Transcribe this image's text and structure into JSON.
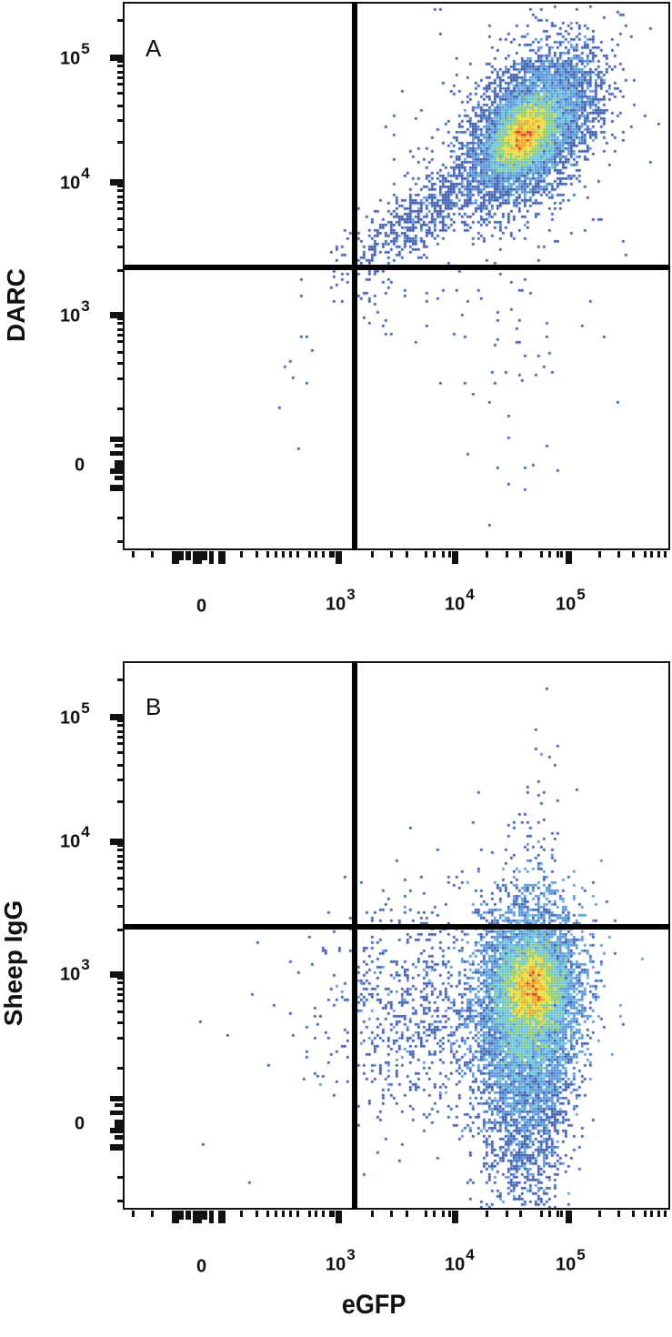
{
  "figure": {
    "x_axis_title": "eGFP",
    "colors": {
      "frame": "#111111",
      "gate": "#000000",
      "density_scale": [
        "#3352a8",
        "#4f8fd6",
        "#5fc0d8",
        "#8cc95a",
        "#e8dc2a",
        "#f0a010",
        "#dd2a1e"
      ]
    }
  },
  "panels": [
    {
      "id": "A",
      "letter": "A",
      "y_axis_title": "DARC",
      "x_tick_labels": [
        {
          "base": "0",
          "exp": ""
        },
        {
          "base": "10",
          "exp": "3"
        },
        {
          "base": "10",
          "exp": "4"
        },
        {
          "base": "10",
          "exp": "5"
        }
      ],
      "y_tick_labels": [
        {
          "base": "10",
          "exp": "5"
        },
        {
          "base": "10",
          "exp": "4"
        },
        {
          "base": "10",
          "exp": "3"
        },
        {
          "base": "0",
          "exp": ""
        }
      ]
    },
    {
      "id": "B",
      "letter": "B",
      "y_axis_title": "Sheep IgG",
      "x_tick_labels": [
        {
          "base": "0",
          "exp": ""
        },
        {
          "base": "10",
          "exp": "3"
        },
        {
          "base": "10",
          "exp": "4"
        },
        {
          "base": "10",
          "exp": "5"
        }
      ],
      "y_tick_labels": [
        {
          "base": "10",
          "exp": "5"
        },
        {
          "base": "10",
          "exp": "4"
        },
        {
          "base": "10",
          "exp": "3"
        },
        {
          "base": "0",
          "exp": ""
        }
      ]
    }
  ],
  "chart_data": [
    {
      "type": "scatter",
      "subtype": "flow-cytometry-density-plot",
      "title": "A",
      "xlabel": "eGFP",
      "ylabel": "DARC",
      "x_scale": "biexponential",
      "y_scale": "biexponential",
      "x_ticks": [
        "0",
        "10^3",
        "10^4",
        "10^5"
      ],
      "y_ticks": [
        "0",
        "10^3",
        "10^4",
        "10^5"
      ],
      "xlim": [
        -300,
        250000
      ],
      "ylim": [
        -300,
        250000
      ],
      "quadrant_gate": {
        "x": 1300,
        "y": 2200
      },
      "grid": false,
      "legend": null,
      "populations": [
        {
          "name": "main cluster",
          "quadrant": "upper-right",
          "center": {
            "eGFP": 40000,
            "DARC": 25000
          },
          "shape": "diagonal ellipse",
          "density": "high (red core)"
        },
        {
          "name": "diagonal tail",
          "quadrant": "upper-right",
          "from": {
            "eGFP": 1500,
            "DARC": 2500
          },
          "to": {
            "eGFP": 15000,
            "DARC": 10000
          },
          "density": "low"
        },
        {
          "name": "scattered events",
          "quadrant": "lower-right",
          "range_eGFP": [
            1300,
            80000
          ],
          "range_DARC": [
            -200,
            2000
          ],
          "density": "sparse"
        },
        {
          "name": "scattered events",
          "quadrant": "lower-left",
          "range_eGFP": [
            400,
            1200
          ],
          "range_DARC": [
            50,
            800
          ],
          "density": "very sparse"
        }
      ],
      "approx_quadrant_distribution": {
        "upper_left": "~0%",
        "upper_right": "majority",
        "lower_left": "<1%",
        "lower_right": "~1%"
      }
    },
    {
      "type": "scatter",
      "subtype": "flow-cytometry-density-plot",
      "title": "B",
      "xlabel": "eGFP",
      "ylabel": "Sheep IgG",
      "x_scale": "biexponential",
      "y_scale": "biexponential",
      "x_ticks": [
        "0",
        "10^3",
        "10^4",
        "10^5"
      ],
      "y_ticks": [
        "0",
        "10^3",
        "10^4",
        "10^5"
      ],
      "xlim": [
        -300,
        250000
      ],
      "ylim": [
        -300,
        250000
      ],
      "quadrant_gate": {
        "x": 1300,
        "y": 2200
      },
      "grid": false,
      "legend": null,
      "populations": [
        {
          "name": "main cluster",
          "quadrant": "lower-right",
          "center": {
            "eGFP": 45000,
            "SheepIgG": 700
          },
          "shape": "vertical ellipse extending below 0",
          "density": "high (red core)"
        },
        {
          "name": "left spread",
          "quadrant": "lower-right",
          "range_eGFP": [
            1500,
            15000
          ],
          "range_SheepIgG": [
            -200,
            1500
          ],
          "density": "low"
        },
        {
          "name": "upper scattered",
          "quadrant": "upper-right",
          "range_eGFP": [
            10000,
            80000
          ],
          "range_SheepIgG": [
            2200,
            90000
          ],
          "density": "sparse"
        },
        {
          "name": "scattered events",
          "quadrant": "lower-left",
          "range_eGFP": [
            -50,
            1200
          ],
          "range_SheepIgG": [
            -100,
            800
          ],
          "density": "very sparse"
        }
      ],
      "approx_quadrant_distribution": {
        "upper_left": "~0%",
        "upper_right": "~2%",
        "lower_left": "<1%",
        "lower_right": "majority"
      }
    }
  ]
}
